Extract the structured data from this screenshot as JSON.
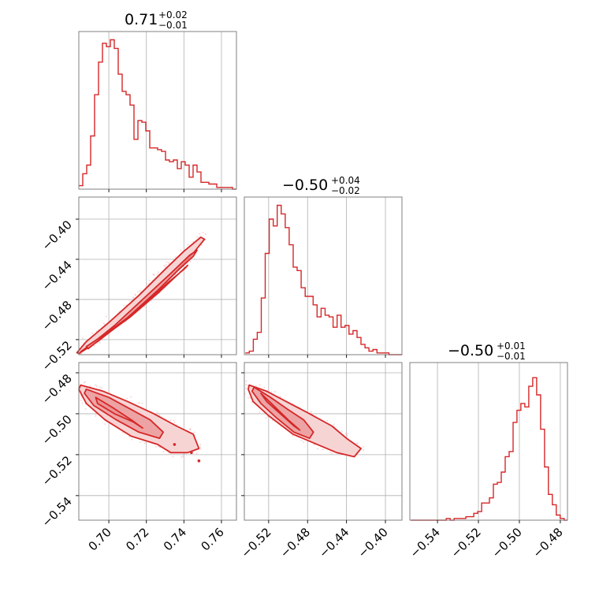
{
  "colors": {
    "series": "#d62728",
    "fill_inner": "#e99394",
    "fill_outer": "#f7d4d4",
    "scatter": "#f3b8b8",
    "grid": "#b0b0b0",
    "frame": "#808080"
  },
  "chart_data": [
    {
      "type": "histogram",
      "panel": "1d-param-1",
      "title": {
        "value": "0.71",
        "plus": "+0.02",
        "minus": "−0.01"
      },
      "xlim": [
        0.684,
        0.768
      ],
      "bin_edges_start": 0.684,
      "bin_width": 0.0021,
      "counts": [
        2,
        9,
        14,
        31,
        55,
        74,
        85,
        83,
        87,
        82,
        67,
        57,
        55,
        49,
        29,
        40,
        39,
        34,
        24,
        24,
        23,
        22,
        17,
        16,
        17,
        12,
        16,
        14,
        7,
        14,
        10,
        4,
        4,
        3,
        3,
        1,
        1,
        1,
        1,
        0
      ],
      "ylim": [
        0,
        90
      ],
      "x_ticks": [
        0.7,
        0.72,
        0.74,
        0.76
      ],
      "x_tick_labels": []
    },
    {
      "type": "contour",
      "panel": "2d-param-1-vs-param-2",
      "xlim": [
        0.684,
        0.768
      ],
      "ylim": [
        -0.535,
        -0.378
      ],
      "x_ticks": [
        0.7,
        0.72,
        0.74,
        0.76
      ],
      "y_ticks": [
        -0.4,
        -0.44,
        -0.48,
        -0.52
      ],
      "y_tick_labels": [
        "−0.40",
        "−0.44",
        "−0.48",
        "−0.52"
      ],
      "inner_region": [
        [
          0.688,
          -0.527
        ],
        [
          0.7,
          -0.512
        ],
        [
          0.716,
          -0.49
        ],
        [
          0.731,
          -0.464
        ],
        [
          0.74,
          -0.45
        ],
        [
          0.742,
          -0.446
        ],
        [
          0.738,
          -0.453
        ],
        [
          0.726,
          -0.474
        ],
        [
          0.711,
          -0.498
        ],
        [
          0.697,
          -0.517
        ],
        [
          0.689,
          -0.529
        ]
      ],
      "outer_region": [
        [
          0.686,
          -0.531
        ],
        [
          0.696,
          -0.518
        ],
        [
          0.71,
          -0.498
        ],
        [
          0.726,
          -0.471
        ],
        [
          0.738,
          -0.449
        ],
        [
          0.745,
          -0.437
        ],
        [
          0.747,
          -0.431
        ],
        [
          0.743,
          -0.436
        ],
        [
          0.733,
          -0.454
        ],
        [
          0.718,
          -0.48
        ],
        [
          0.703,
          -0.506
        ],
        [
          0.691,
          -0.524
        ],
        [
          0.685,
          -0.532
        ]
      ],
      "outermost_region": [
        [
          0.684,
          -0.534
        ],
        [
          0.694,
          -0.522
        ],
        [
          0.707,
          -0.503
        ],
        [
          0.723,
          -0.477
        ],
        [
          0.736,
          -0.452
        ],
        [
          0.745,
          -0.434
        ],
        [
          0.751,
          -0.42
        ],
        [
          0.749,
          -0.418
        ],
        [
          0.74,
          -0.432
        ],
        [
          0.73,
          -0.45
        ],
        [
          0.716,
          -0.476
        ],
        [
          0.7,
          -0.503
        ],
        [
          0.688,
          -0.522
        ],
        [
          0.683,
          -0.533
        ]
      ]
    },
    {
      "type": "histogram",
      "panel": "1d-param-2",
      "title": {
        "value": "−0.50",
        "plus": "+0.04",
        "minus": "−0.02"
      },
      "xlim": [
        -0.545,
        -0.383
      ],
      "bin_edges_start": -0.544,
      "bin_width": 0.0041,
      "counts": [
        1,
        2,
        9,
        13,
        33,
        59,
        79,
        75,
        87,
        82,
        74,
        64,
        51,
        49,
        39,
        34,
        34,
        29,
        22,
        27,
        23,
        22,
        16,
        23,
        16,
        17,
        12,
        14,
        10,
        6,
        4,
        2,
        3,
        1,
        1,
        1,
        0,
        0,
        0,
        0
      ],
      "ylim": [
        0,
        90
      ],
      "x_ticks": [
        -0.52,
        -0.48,
        -0.44,
        -0.4
      ],
      "x_tick_labels": []
    },
    {
      "type": "contour",
      "panel": "2d-param-1-vs-param-3",
      "xlim": [
        0.684,
        0.768
      ],
      "ylim": [
        -0.552,
        -0.475
      ],
      "x_ticks": [
        0.7,
        0.72,
        0.74,
        0.76
      ],
      "x_tick_labels": [
        "0.70",
        "0.72",
        "0.74",
        "0.76"
      ],
      "y_ticks": [
        -0.48,
        -0.5,
        -0.52,
        -0.54
      ],
      "y_tick_labels": [
        "−0.48",
        "−0.50",
        "−0.52",
        "−0.54"
      ],
      "inner_region": [
        [
          0.693,
          -0.492
        ],
        [
          0.702,
          -0.497
        ],
        [
          0.712,
          -0.503
        ],
        [
          0.718,
          -0.507
        ],
        [
          0.713,
          -0.504
        ],
        [
          0.703,
          -0.5
        ],
        [
          0.694,
          -0.495
        ]
      ],
      "outer_region": [
        [
          0.688,
          -0.488
        ],
        [
          0.7,
          -0.492
        ],
        [
          0.712,
          -0.498
        ],
        [
          0.722,
          -0.503
        ],
        [
          0.729,
          -0.509
        ],
        [
          0.727,
          -0.512
        ],
        [
          0.716,
          -0.509
        ],
        [
          0.704,
          -0.503
        ],
        [
          0.692,
          -0.496
        ],
        [
          0.687,
          -0.49
        ]
      ],
      "outermost_region": [
        [
          0.685,
          -0.486
        ],
        [
          0.697,
          -0.489
        ],
        [
          0.71,
          -0.494
        ],
        [
          0.724,
          -0.5
        ],
        [
          0.736,
          -0.506
        ],
        [
          0.745,
          -0.51
        ],
        [
          0.748,
          -0.517
        ],
        [
          0.742,
          -0.519
        ],
        [
          0.733,
          -0.519
        ],
        [
          0.726,
          -0.515
        ],
        [
          0.712,
          -0.511
        ],
        [
          0.698,
          -0.503
        ],
        [
          0.688,
          -0.495
        ],
        [
          0.684,
          -0.488
        ]
      ],
      "extra_outer_points": [
        [
          0.735,
          -0.515
        ],
        [
          0.744,
          -0.519
        ],
        [
          0.748,
          -0.523
        ]
      ]
    },
    {
      "type": "contour",
      "panel": "2d-param-2-vs-param-3",
      "xlim": [
        -0.545,
        -0.383
      ],
      "ylim": [
        -0.552,
        -0.475
      ],
      "x_ticks": [
        -0.52,
        -0.48,
        -0.44,
        -0.4
      ],
      "x_tick_labels": [
        "−0.52",
        "−0.48",
        "−0.44",
        "−0.40"
      ],
      "y_ticks": [
        -0.48,
        -0.5,
        -0.52,
        -0.54
      ],
      "y_tick_labels": [],
      "inner_region": [
        [
          -0.528,
          -0.49
        ],
        [
          -0.515,
          -0.496
        ],
        [
          -0.5,
          -0.503
        ],
        [
          -0.488,
          -0.508
        ],
        [
          -0.494,
          -0.506
        ],
        [
          -0.508,
          -0.5
        ],
        [
          -0.522,
          -0.494
        ]
      ],
      "outer_region": [
        [
          -0.535,
          -0.487
        ],
        [
          -0.518,
          -0.492
        ],
        [
          -0.5,
          -0.498
        ],
        [
          -0.484,
          -0.503
        ],
        [
          -0.474,
          -0.509
        ],
        [
          -0.478,
          -0.512
        ],
        [
          -0.494,
          -0.509
        ],
        [
          -0.512,
          -0.502
        ],
        [
          -0.528,
          -0.495
        ],
        [
          -0.537,
          -0.489
        ]
      ],
      "outermost_region": [
        [
          -0.54,
          -0.486
        ],
        [
          -0.522,
          -0.489
        ],
        [
          -0.502,
          -0.494
        ],
        [
          -0.478,
          -0.5
        ],
        [
          -0.455,
          -0.506
        ],
        [
          -0.44,
          -0.512
        ],
        [
          -0.425,
          -0.517
        ],
        [
          -0.432,
          -0.521
        ],
        [
          -0.45,
          -0.519
        ],
        [
          -0.47,
          -0.515
        ],
        [
          -0.495,
          -0.51
        ],
        [
          -0.52,
          -0.501
        ],
        [
          -0.536,
          -0.494
        ],
        [
          -0.541,
          -0.488
        ]
      ]
    },
    {
      "type": "histogram",
      "panel": "1d-param-3",
      "title": {
        "value": "−0.50",
        "plus": "+0.01",
        "minus": "−0.01"
      },
      "xlim": [
        -0.5535,
        -0.4765
      ],
      "bin_edges_start": -0.553,
      "bin_width": 0.00192,
      "counts": [
        0,
        0,
        0,
        0,
        0,
        0,
        0,
        0,
        0,
        1,
        0,
        1,
        1,
        1,
        2,
        2,
        4,
        5,
        10,
        10,
        13,
        21,
        22,
        28,
        37,
        40,
        57,
        64,
        68,
        66,
        78,
        83,
        73,
        53,
        31,
        15,
        9,
        3,
        1,
        0
      ],
      "ylim": [
        0,
        90
      ],
      "x_ticks": [
        -0.54,
        -0.52,
        -0.5,
        -0.48
      ],
      "x_tick_labels": [
        "−0.54",
        "−0.52",
        "−0.50",
        "−0.48"
      ]
    }
  ]
}
